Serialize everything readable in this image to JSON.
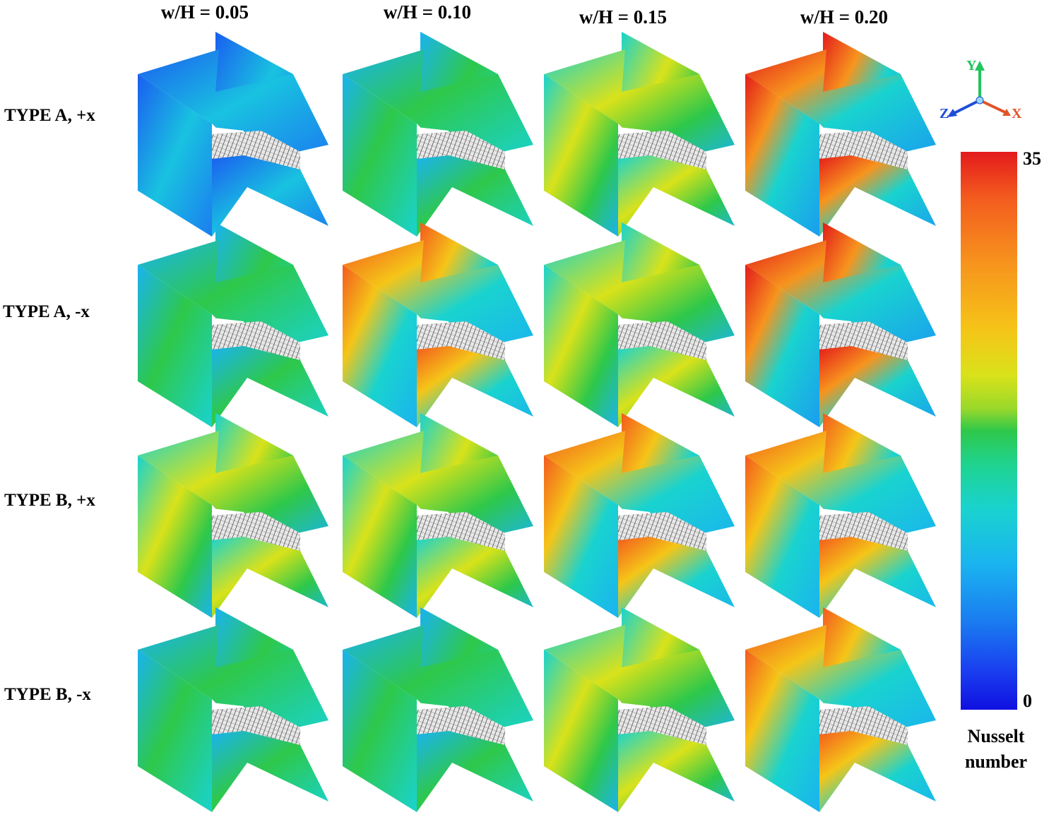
{
  "columns": [
    "w/H = 0.05",
    "w/H = 0.10",
    "w/H = 0.15",
    "w/H = 0.20"
  ],
  "rows": [
    "TYPE A, +x",
    "TYPE A, -x",
    "TYPE B, +x",
    "TYPE B, -x"
  ],
  "colorbar": {
    "title_line1": "Nusselt",
    "title_line2": "number",
    "max": "35",
    "min": "0",
    "colors": [
      "#1010e0",
      "#1a7df0",
      "#19d3cf",
      "#2ec84a",
      "#d9e21a",
      "#f7941d",
      "#e31a1c"
    ]
  },
  "axes": {
    "y": "Y",
    "z": "Z",
    "x": "X",
    "y_color": "#22c55e",
    "z_color": "#1d4ed8",
    "x_color": "#e0542a"
  },
  "panel_intensity": [
    [
      0.25,
      0.4,
      0.6,
      0.8
    ],
    [
      0.35,
      0.65,
      0.5,
      0.8
    ],
    [
      0.45,
      0.6,
      0.65,
      0.7
    ],
    [
      0.3,
      0.4,
      0.55,
      0.65
    ]
  ]
}
